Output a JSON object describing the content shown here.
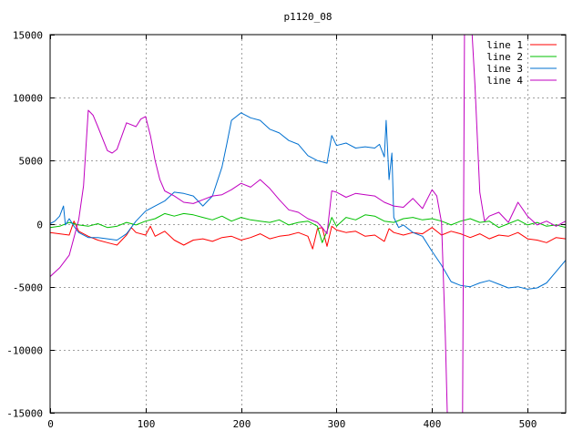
{
  "chart_data": {
    "type": "line",
    "title": "p1120_08",
    "xlabel": "",
    "ylabel": "",
    "xlim": [
      0,
      540
    ],
    "ylim": [
      -15000,
      15000
    ],
    "x_ticks": [
      0,
      100,
      200,
      300,
      400,
      500
    ],
    "y_ticks": [
      -15000,
      -10000,
      -5000,
      0,
      5000,
      10000,
      15000
    ],
    "grid": true,
    "legend_position": "top-right",
    "series": [
      {
        "name": "line 1",
        "color": "#ff0000",
        "x": [
          0,
          10,
          20,
          25,
          30,
          40,
          50,
          60,
          70,
          80,
          85,
          90,
          100,
          105,
          110,
          120,
          130,
          140,
          150,
          160,
          170,
          180,
          190,
          200,
          210,
          220,
          230,
          240,
          250,
          260,
          270,
          275,
          280,
          285,
          290,
          295,
          300,
          310,
          320,
          330,
          340,
          350,
          355,
          360,
          370,
          380,
          390,
          400,
          410,
          420,
          430,
          440,
          450,
          460,
          470,
          480,
          490,
          500,
          510,
          520,
          530,
          540
        ],
        "y": [
          -700,
          -800,
          -900,
          200,
          -600,
          -1000,
          -1300,
          -1500,
          -1700,
          -900,
          -300,
          -700,
          -900,
          -200,
          -1000,
          -600,
          -1300,
          -1700,
          -1300,
          -1200,
          -1400,
          -1100,
          -1000,
          -1300,
          -1100,
          -800,
          -1200,
          -1000,
          -900,
          -700,
          -1000,
          -2000,
          -400,
          -300,
          -1800,
          -200,
          -500,
          -700,
          -600,
          -1000,
          -900,
          -1400,
          -400,
          -700,
          -900,
          -700,
          -800,
          -300,
          -900,
          -600,
          -800,
          -1100,
          -800,
          -1200,
          -900,
          -1000,
          -700,
          -1200,
          -1300,
          -1500,
          -1100,
          -1200
        ]
      },
      {
        "name": "line 2",
        "color": "#00c000",
        "x": [
          0,
          10,
          20,
          30,
          40,
          50,
          60,
          70,
          80,
          90,
          100,
          110,
          120,
          130,
          140,
          150,
          160,
          170,
          180,
          190,
          200,
          210,
          220,
          230,
          240,
          250,
          260,
          270,
          280,
          285,
          290,
          295,
          300,
          310,
          320,
          330,
          340,
          350,
          360,
          370,
          380,
          390,
          400,
          410,
          420,
          430,
          440,
          450,
          460,
          470,
          480,
          490,
          500,
          510,
          520,
          530,
          540
        ],
        "y": [
          -300,
          -200,
          100,
          -100,
          -200,
          0,
          -300,
          -200,
          100,
          -100,
          200,
          400,
          800,
          600,
          800,
          700,
          500,
          300,
          600,
          200,
          500,
          300,
          200,
          100,
          300,
          -100,
          100,
          200,
          -200,
          -1500,
          -600,
          500,
          -200,
          500,
          300,
          700,
          600,
          200,
          100,
          400,
          500,
          300,
          400,
          200,
          -100,
          200,
          400,
          100,
          200,
          -300,
          0,
          300,
          -100,
          100,
          -200,
          -100,
          -300
        ]
      },
      {
        "name": "line 3",
        "color": "#0070d0",
        "x": [
          0,
          5,
          10,
          14,
          16,
          20,
          25,
          30,
          40,
          50,
          60,
          70,
          80,
          90,
          100,
          110,
          120,
          130,
          140,
          150,
          160,
          170,
          180,
          185,
          190,
          200,
          210,
          220,
          230,
          240,
          250,
          260,
          270,
          280,
          290,
          295,
          300,
          310,
          320,
          330,
          340,
          345,
          350,
          352,
          355,
          358,
          360,
          365,
          370,
          380,
          390,
          400,
          410,
          420,
          430,
          440,
          450,
          460,
          470,
          480,
          490,
          500,
          510,
          520,
          530,
          540
        ],
        "y": [
          0,
          200,
          600,
          1400,
          -100,
          400,
          -200,
          -700,
          -1100,
          -1100,
          -1200,
          -1300,
          -800,
          200,
          1000,
          1400,
          1800,
          2500,
          2400,
          2200,
          1400,
          2200,
          4500,
          6300,
          8200,
          8800,
          8400,
          8200,
          7500,
          7200,
          6600,
          6300,
          5400,
          5000,
          4800,
          7000,
          6200,
          6400,
          6000,
          6100,
          6000,
          6300,
          5300,
          8200,
          3500,
          5600,
          500,
          -300,
          -100,
          -700,
          -1000,
          -2200,
          -3300,
          -4600,
          -4900,
          -5000,
          -4700,
          -4500,
          -4800,
          -5100,
          -5000,
          -5200,
          -5100,
          -4700,
          -3800,
          -2900
        ]
      },
      {
        "name": "line 4",
        "color": "#c000c0",
        "x": [
          0,
          10,
          20,
          30,
          35,
          40,
          45,
          50,
          60,
          65,
          70,
          80,
          90,
          95,
          100,
          105,
          110,
          115,
          120,
          130,
          140,
          150,
          160,
          170,
          180,
          190,
          200,
          210,
          220,
          230,
          240,
          250,
          260,
          270,
          280,
          285,
          290,
          295,
          300,
          310,
          320,
          330,
          340,
          350,
          360,
          370,
          380,
          390,
          400,
          405,
          410,
          414,
          416,
          418,
          432,
          434,
          436,
          442,
          445,
          450,
          455,
          460,
          470,
          480,
          490,
          500,
          510,
          520,
          530,
          540
        ],
        "y": [
          -4200,
          -3500,
          -2500,
          300,
          3000,
          9000,
          8600,
          7700,
          5800,
          5600,
          5900,
          8000,
          7700,
          8300,
          8500,
          7000,
          5000,
          3500,
          2600,
          2200,
          1700,
          1600,
          1900,
          2200,
          2300,
          2700,
          3200,
          2900,
          3500,
          2800,
          1900,
          1100,
          900,
          400,
          100,
          -300,
          -800,
          2600,
          2500,
          2100,
          2400,
          2300,
          2200,
          1700,
          1400,
          1300,
          2000,
          1200,
          2700,
          2200,
          100,
          -9000,
          -15000,
          -15000,
          -15000,
          15000,
          15000,
          15000,
          11000,
          2500,
          200,
          600,
          900,
          100,
          1700,
          600,
          -100,
          200,
          -200,
          200
        ]
      }
    ]
  }
}
